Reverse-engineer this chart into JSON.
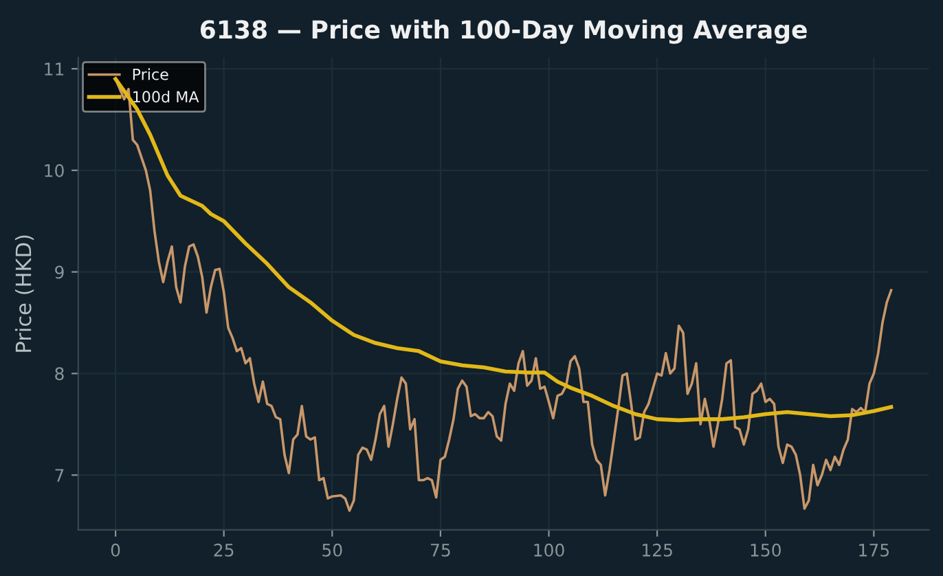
{
  "chart_data": {
    "type": "line",
    "title": "6138 — Price with 100-Day Moving Average",
    "ylabel": "Price (HKD)",
    "xlim": [
      -8.6,
      187.7
    ],
    "xticks": [
      0,
      25,
      50,
      75,
      100,
      125,
      150,
      175
    ],
    "ylim": [
      6.46,
      11.11
    ],
    "yticks": [
      7,
      8,
      9,
      10,
      11
    ],
    "grid": true,
    "legend": "top left",
    "marker": "none",
    "line_style": "solid",
    "series": [
      {
        "name": "Price",
        "color": "#c8976a",
        "x": [
          0,
          2,
          3,
          4,
          5,
          7,
          8,
          9,
          10,
          11,
          12,
          13,
          14,
          15,
          16,
          17,
          18,
          19,
          20,
          21,
          22,
          23,
          24,
          25,
          26,
          27,
          28,
          29,
          30,
          31,
          32,
          33,
          34,
          35,
          36,
          37,
          38,
          39,
          40,
          41,
          42,
          43,
          44,
          45,
          46,
          47,
          48,
          49,
          50,
          52,
          53,
          54,
          55,
          56,
          57,
          58,
          59,
          60,
          61,
          62,
          63,
          64,
          65,
          66,
          67,
          68,
          69,
          70,
          71,
          72,
          73,
          74,
          75,
          76,
          77,
          78,
          79,
          80,
          81,
          82,
          83,
          84,
          85,
          86,
          87,
          88,
          89,
          90,
          91,
          92,
          93,
          94,
          95,
          96,
          97,
          98,
          99,
          100,
          101,
          102,
          103,
          104,
          105,
          106,
          107,
          108,
          109,
          110,
          111,
          112,
          113,
          114,
          115,
          116,
          117,
          118,
          119,
          120,
          121,
          122,
          123,
          124,
          125,
          126,
          127,
          128,
          129,
          130,
          131,
          132,
          133,
          134,
          135,
          136,
          137,
          138,
          139,
          140,
          141,
          142,
          143,
          144,
          145,
          146,
          147,
          148,
          149,
          150,
          151,
          152,
          153,
          154,
          155,
          156,
          157,
          158,
          159,
          160,
          161,
          162,
          163,
          164,
          165,
          166,
          167,
          168,
          169,
          170,
          171,
          172,
          173,
          174,
          175,
          176,
          177,
          178,
          179
        ],
        "values": [
          10.9,
          10.7,
          10.8,
          10.3,
          10.25,
          10.0,
          9.8,
          9.4,
          9.1,
          8.9,
          9.1,
          9.25,
          8.85,
          8.7,
          9.05,
          9.25,
          9.27,
          9.15,
          8.95,
          8.6,
          8.85,
          9.02,
          9.03,
          8.8,
          8.45,
          8.35,
          8.22,
          8.25,
          8.1,
          8.15,
          7.9,
          7.72,
          7.92,
          7.7,
          7.68,
          7.57,
          7.55,
          7.2,
          7.02,
          7.35,
          7.4,
          7.68,
          7.38,
          7.35,
          7.37,
          6.95,
          6.97,
          6.77,
          6.79,
          6.8,
          6.77,
          6.65,
          6.75,
          7.2,
          7.27,
          7.25,
          7.15,
          7.35,
          7.6,
          7.68,
          7.28,
          7.5,
          7.75,
          7.96,
          7.9,
          7.45,
          7.55,
          6.95,
          6.95,
          6.97,
          6.95,
          6.78,
          7.15,
          7.18,
          7.35,
          7.55,
          7.85,
          7.93,
          7.87,
          7.58,
          7.6,
          7.56,
          7.56,
          7.62,
          7.58,
          7.38,
          7.34,
          7.7,
          7.9,
          7.83,
          8.1,
          8.22,
          7.88,
          7.93,
          8.15,
          7.85,
          7.87,
          7.72,
          7.56,
          7.78,
          7.8,
          7.88,
          8.12,
          8.17,
          8.05,
          7.72,
          7.72,
          7.3,
          7.15,
          7.1,
          6.8,
          7.05,
          7.35,
          7.65,
          7.98,
          8.0,
          7.7,
          7.35,
          7.37,
          7.62,
          7.7,
          7.85,
          8.0,
          7.98,
          8.2,
          8.0,
          8.05,
          8.47,
          8.4,
          7.8,
          7.9,
          8.1,
          7.5,
          7.75,
          7.55,
          7.28,
          7.5,
          7.75,
          8.1,
          8.13,
          7.47,
          7.45,
          7.3,
          7.45,
          7.8,
          7.83,
          7.9,
          7.72,
          7.75,
          7.7,
          7.28,
          7.12,
          7.3,
          7.28,
          7.2,
          7.0,
          6.67,
          6.75,
          7.1,
          6.9,
          7.0,
          7.15,
          7.05,
          7.18,
          7.1,
          7.25,
          7.35,
          7.65,
          7.62,
          7.66,
          7.62,
          7.9,
          8.0,
          8.2,
          8.5,
          8.7,
          8.82
        ]
      },
      {
        "name": "100d MA",
        "color": "#e2b818",
        "x": [
          0,
          5,
          8,
          12,
          15,
          20,
          22,
          25,
          30,
          35,
          40,
          45,
          50,
          55,
          60,
          65,
          70,
          75,
          80,
          85,
          90,
          95,
          99,
          102,
          105,
          110,
          115,
          120,
          125,
          130,
          135,
          140,
          145,
          150,
          155,
          160,
          165,
          170,
          175,
          179
        ],
        "values": [
          10.9,
          10.6,
          10.35,
          9.95,
          9.75,
          9.65,
          9.57,
          9.5,
          9.28,
          9.08,
          8.85,
          8.7,
          8.52,
          8.38,
          8.3,
          8.25,
          8.22,
          8.12,
          8.08,
          8.06,
          8.02,
          8.01,
          8.01,
          7.92,
          7.86,
          7.78,
          7.68,
          7.6,
          7.55,
          7.54,
          7.55,
          7.55,
          7.57,
          7.6,
          7.62,
          7.6,
          7.58,
          7.59,
          7.63,
          7.67
        ]
      }
    ]
  }
}
